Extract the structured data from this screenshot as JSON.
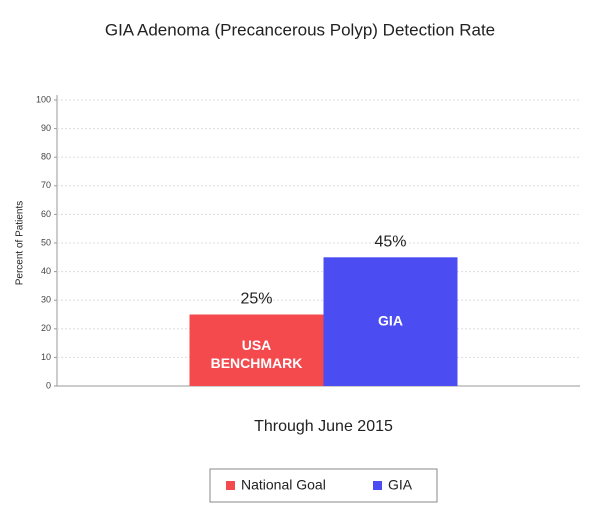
{
  "chart_data": {
    "type": "bar",
    "title": "GIA Adenoma (Precancerous Polyp) Detection Rate",
    "y_label": "Percent of Patients",
    "categories": [
      "Through June 2015"
    ],
    "series": [
      {
        "name": "National Goal",
        "color": "#f44a4e",
        "values": [
          25
        ],
        "value_labels": [
          "25%"
        ],
        "inner_label": [
          "USA",
          "BENCHMARK"
        ]
      },
      {
        "name": "GIA",
        "color": "#4b4cf2",
        "values": [
          45
        ],
        "value_labels": [
          "45%"
        ],
        "inner_label": [
          "GIA"
        ]
      }
    ],
    "ylim": [
      0,
      100
    ],
    "yticks": [
      0,
      10,
      20,
      30,
      40,
      50,
      60,
      70,
      80,
      90,
      100
    ],
    "grid": true
  }
}
